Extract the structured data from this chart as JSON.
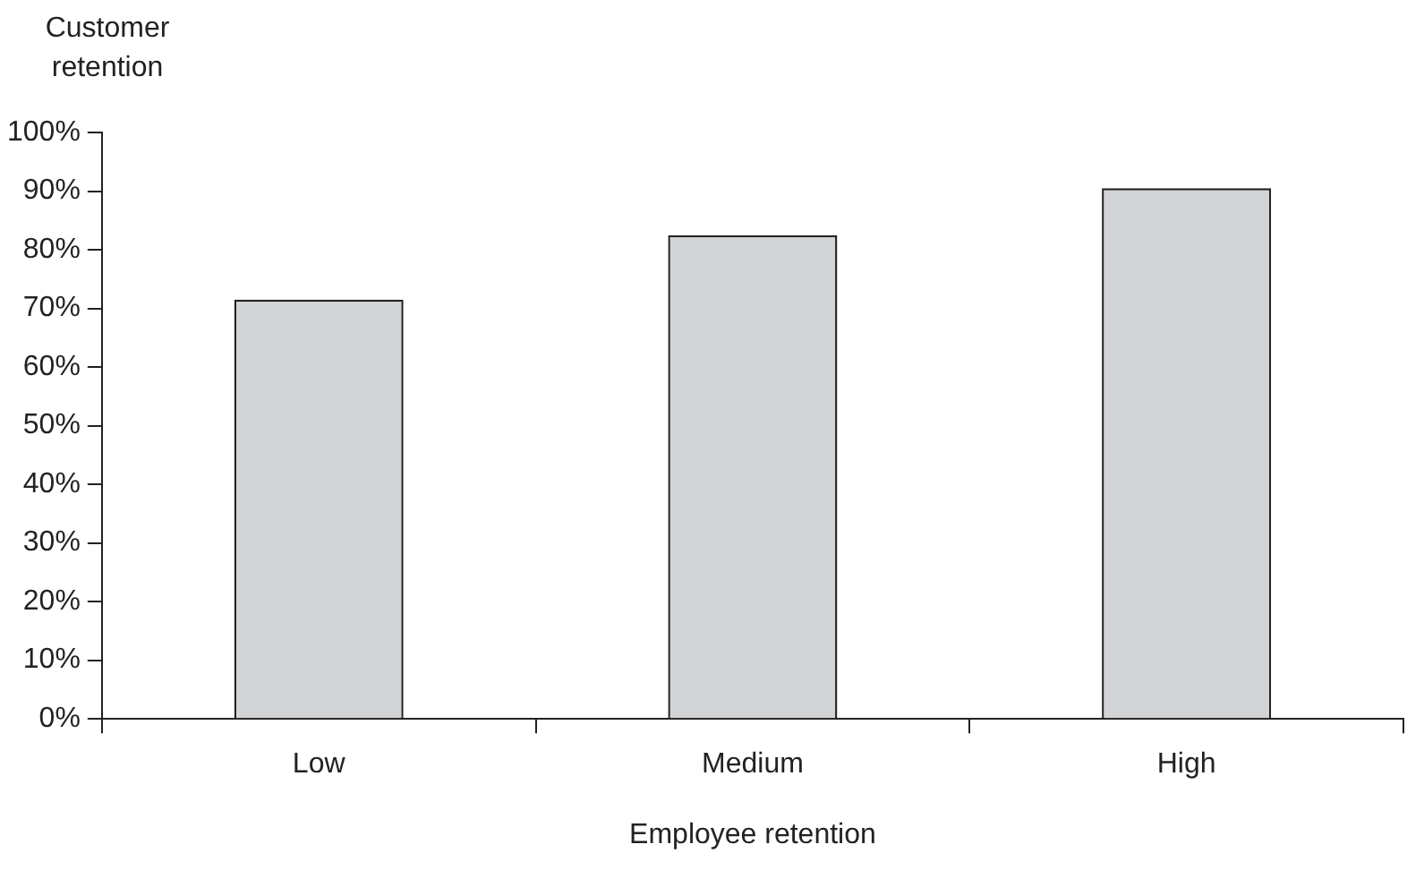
{
  "chart_data": {
    "type": "bar",
    "xlabel": "Employee retention",
    "ylabel": "Customer\nretention",
    "categories": [
      "Low",
      "Medium",
      "High"
    ],
    "values": [
      71.5,
      82.5,
      90.5
    ],
    "color": "#d3d4d6",
    "ylim": [
      0,
      100
    ],
    "yticks": [
      {
        "value": 0,
        "label": "0%"
      },
      {
        "value": 10,
        "label": "10%"
      },
      {
        "value": 20,
        "label": "20%"
      },
      {
        "value": 30,
        "label": "30%"
      },
      {
        "value": 40,
        "label": "40%"
      },
      {
        "value": 50,
        "label": "50%"
      },
      {
        "value": 60,
        "label": "60%"
      },
      {
        "value": 70,
        "label": "70%"
      },
      {
        "value": 80,
        "label": "80%"
      },
      {
        "value": 90,
        "label": "90%"
      },
      {
        "value": 100,
        "label": "100%"
      }
    ],
    "grid": false,
    "legend": false
  }
}
